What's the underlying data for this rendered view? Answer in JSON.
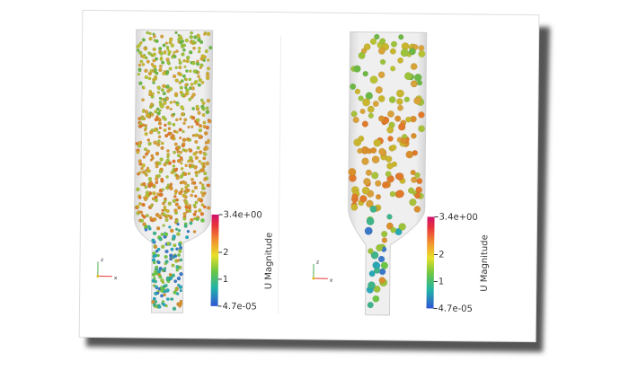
{
  "panels": [
    {
      "axes": {
        "up": "z",
        "right": "x"
      },
      "colorbar": {
        "title": "U Magnitude",
        "labels": [
          "3.4e+00",
          "2",
          "1",
          "4.7e-05"
        ]
      }
    },
    {
      "axes": {
        "up": "z",
        "right": "x"
      },
      "colorbar": {
        "title": "U Magnitude",
        "labels": [
          "3.4e+00",
          "2",
          "1",
          "4.7e-05"
        ]
      }
    }
  ]
}
